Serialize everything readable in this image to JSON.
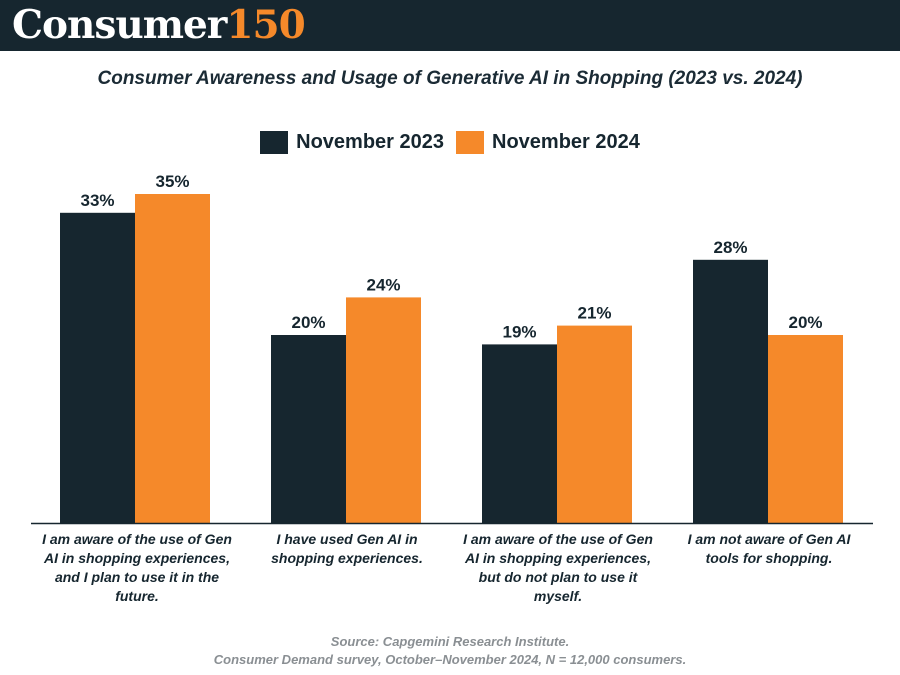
{
  "brand": {
    "name_word": "Consumer",
    "name_number": "150"
  },
  "colors": {
    "header_bg": "#16262f",
    "series_2023": "#16262f",
    "series_2024": "#f5892a",
    "text": "#16262f",
    "source_text": "#8a8f93"
  },
  "source": {
    "line1": "Source: Capgemini Research Institute.",
    "line2": "Consumer Demand survey, October–November 2024, N = 12,000 consumers."
  },
  "chart_data": {
    "type": "bar",
    "title": "Consumer Awareness and Usage of Generative AI in Shopping (2023 vs. 2024)",
    "categories": [
      "I am aware of the use of Gen AI in shopping experiences, and I plan to use it in the future.",
      "I have used Gen AI in shopping experiences.",
      "I am aware of the use of Gen AI in shopping experiences, but do not plan to use it myself.",
      "I am not aware of Gen AI tools for shopping."
    ],
    "series": [
      {
        "name": "November 2023",
        "values": [
          33,
          20,
          19,
          28
        ],
        "labels": [
          "33%",
          "20%",
          "19%",
          "28%"
        ],
        "color": "#16262f"
      },
      {
        "name": "November 2024",
        "values": [
          35,
          24,
          21,
          20
        ],
        "labels": [
          "35%",
          "24%",
          "21%",
          "20%"
        ],
        "color": "#f5892a"
      }
    ],
    "value_unit": "%",
    "ylim": [
      0,
      40
    ],
    "legend_position": "top-center",
    "grid": false,
    "y_axis_visible": false
  }
}
